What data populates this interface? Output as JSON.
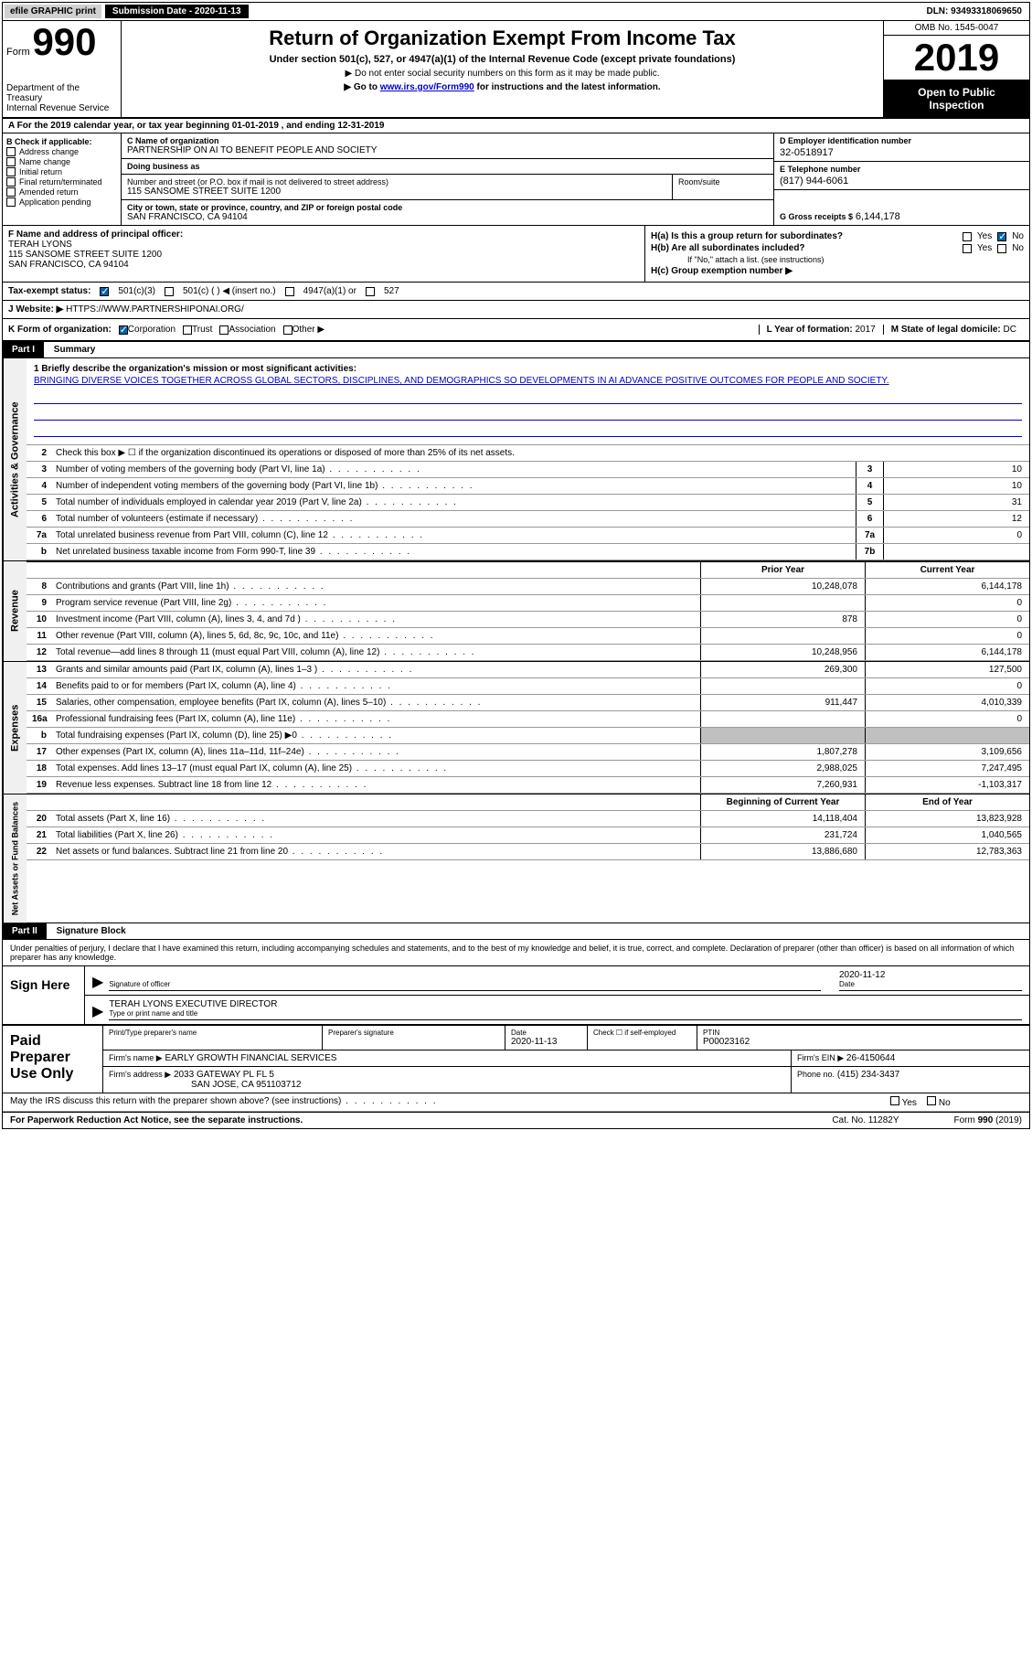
{
  "top": {
    "efile": "efile GRAPHIC print",
    "sub_date_lbl": "Submission Date - 2020-11-13",
    "dln": "DLN: 93493318069650"
  },
  "header": {
    "form_word": "Form",
    "form_num": "990",
    "dept": "Department of the Treasury\nInternal Revenue Service",
    "title": "Return of Organization Exempt From Income Tax",
    "subtitle": "Under section 501(c), 527, or 4947(a)(1) of the Internal Revenue Code (except private foundations)",
    "instr1": "▶ Do not enter social security numbers on this form as it may be made public.",
    "instr2_pre": "▶ Go to ",
    "instr2_link": "www.irs.gov/Form990",
    "instr2_post": " for instructions and the latest information.",
    "omb": "OMB No. 1545-0047",
    "year": "2019",
    "open_pub": "Open to Public Inspection"
  },
  "row_a": "A   For the 2019 calendar year, or tax year beginning 01-01-2019    , and ending 12-31-2019",
  "col_b": {
    "hdr": "B Check if applicable:",
    "items": [
      "Address change",
      "Name change",
      "Initial return",
      "Final return/terminated",
      "Amended return",
      "Application pending"
    ]
  },
  "col_c": {
    "name_lbl": "C Name of organization",
    "name": "PARTNERSHIP ON AI TO BENEFIT PEOPLE AND SOCIETY",
    "dba_lbl": "Doing business as",
    "dba": "",
    "addr_lbl": "Number and street (or P.O. box if mail is not delivered to street address)",
    "suite_lbl": "Room/suite",
    "addr": "115 SANSOME STREET SUITE 1200",
    "city_lbl": "City or town, state or province, country, and ZIP or foreign postal code",
    "city": "SAN FRANCISCO, CA  94104"
  },
  "col_d": {
    "ein_lbl": "D Employer identification number",
    "ein": "32-0518917",
    "tel_lbl": "E Telephone number",
    "tel": "(817) 944-6061",
    "gross_lbl": "G Gross receipts $",
    "gross": "6,144,178"
  },
  "col_f": {
    "lbl": "F  Name and address of principal officer:",
    "name": "TERAH LYONS",
    "addr1": "115 SANSOME STREET SUITE 1200",
    "addr2": "SAN FRANCISCO, CA  94104"
  },
  "col_h": {
    "ha": "H(a)  Is this a group return for subordinates?",
    "hb": "H(b)  Are all subordinates included?",
    "hb_note": "If \"No,\" attach a list. (see instructions)",
    "hc": "H(c)  Group exemption number ▶",
    "yes": "Yes",
    "no": "No"
  },
  "row_i": {
    "lbl": "Tax-exempt status:",
    "opts": [
      "501(c)(3)",
      "501(c) (  ) ◀ (insert no.)",
      "4947(a)(1) or",
      "527"
    ]
  },
  "row_j": {
    "lbl": "J   Website: ▶",
    "val": "HTTPS://WWW.PARTNERSHIPONAI.ORG/"
  },
  "row_k": {
    "lbl": "K Form of organization:",
    "opts": [
      "Corporation",
      "Trust",
      "Association",
      "Other ▶"
    ],
    "l_lbl": "L Year of formation:",
    "l_val": "2017",
    "m_lbl": "M State of legal domicile:",
    "m_val": "DC"
  },
  "part1": {
    "hdr": "Part I",
    "title": "Summary",
    "q1_lbl": "1  Briefly describe the organization's mission or most significant activities:",
    "q1_text": "BRINGING DIVERSE VOICES TOGETHER ACROSS GLOBAL SECTORS, DISCIPLINES, AND DEMOGRAPHICS SO DEVELOPMENTS IN AI ADVANCE POSITIVE OUTCOMES FOR PEOPLE AND SOCIETY.",
    "q2": "Check this box ▶ ☐  if the organization discontinued its operations or disposed of more than 25% of its net assets.",
    "side_gov": "Activities & Governance",
    "side_rev": "Revenue",
    "side_exp": "Expenses",
    "side_net": "Net Assets or Fund Balances",
    "col_prior": "Prior Year",
    "col_curr": "Current Year",
    "col_boy": "Beginning of Current Year",
    "col_eoy": "End of Year",
    "lines_gov": [
      {
        "n": "3",
        "t": "Number of voting members of the governing body (Part VI, line 1a)",
        "box": "3",
        "v": "10"
      },
      {
        "n": "4",
        "t": "Number of independent voting members of the governing body (Part VI, line 1b)",
        "box": "4",
        "v": "10"
      },
      {
        "n": "5",
        "t": "Total number of individuals employed in calendar year 2019 (Part V, line 2a)",
        "box": "5",
        "v": "31"
      },
      {
        "n": "6",
        "t": "Total number of volunteers (estimate if necessary)",
        "box": "6",
        "v": "12"
      },
      {
        "n": "7a",
        "t": "Total unrelated business revenue from Part VIII, column (C), line 12",
        "box": "7a",
        "v": "0"
      },
      {
        "n": "b",
        "t": "Net unrelated business taxable income from Form 990-T, line 39",
        "box": "7b",
        "v": ""
      }
    ],
    "lines_rev": [
      {
        "n": "8",
        "t": "Contributions and grants (Part VIII, line 1h)",
        "p": "10,248,078",
        "c": "6,144,178"
      },
      {
        "n": "9",
        "t": "Program service revenue (Part VIII, line 2g)",
        "p": "",
        "c": "0"
      },
      {
        "n": "10",
        "t": "Investment income (Part VIII, column (A), lines 3, 4, and 7d )",
        "p": "878",
        "c": "0"
      },
      {
        "n": "11",
        "t": "Other revenue (Part VIII, column (A), lines 5, 6d, 8c, 9c, 10c, and 11e)",
        "p": "",
        "c": "0"
      },
      {
        "n": "12",
        "t": "Total revenue—add lines 8 through 11 (must equal Part VIII, column (A), line 12)",
        "p": "10,248,956",
        "c": "6,144,178"
      }
    ],
    "lines_exp": [
      {
        "n": "13",
        "t": "Grants and similar amounts paid (Part IX, column (A), lines 1–3 )",
        "p": "269,300",
        "c": "127,500"
      },
      {
        "n": "14",
        "t": "Benefits paid to or for members (Part IX, column (A), line 4)",
        "p": "",
        "c": "0"
      },
      {
        "n": "15",
        "t": "Salaries, other compensation, employee benefits (Part IX, column (A), lines 5–10)",
        "p": "911,447",
        "c": "4,010,339"
      },
      {
        "n": "16a",
        "t": "Professional fundraising fees (Part IX, column (A), line 11e)",
        "p": "",
        "c": "0"
      },
      {
        "n": "b",
        "t": "Total fundraising expenses (Part IX, column (D), line 25) ▶0",
        "p": "grey",
        "c": "grey"
      },
      {
        "n": "17",
        "t": "Other expenses (Part IX, column (A), lines 11a–11d, 11f–24e)",
        "p": "1,807,278",
        "c": "3,109,656"
      },
      {
        "n": "18",
        "t": "Total expenses. Add lines 13–17 (must equal Part IX, column (A), line 25)",
        "p": "2,988,025",
        "c": "7,247,495"
      },
      {
        "n": "19",
        "t": "Revenue less expenses. Subtract line 18 from line 12",
        "p": "7,260,931",
        "c": "-1,103,317"
      }
    ],
    "lines_net": [
      {
        "n": "20",
        "t": "Total assets (Part X, line 16)",
        "p": "14,118,404",
        "c": "13,823,928"
      },
      {
        "n": "21",
        "t": "Total liabilities (Part X, line 26)",
        "p": "231,724",
        "c": "1,040,565"
      },
      {
        "n": "22",
        "t": "Net assets or fund balances. Subtract line 21 from line 20",
        "p": "13,886,680",
        "c": "12,783,363"
      }
    ]
  },
  "part2": {
    "hdr": "Part II",
    "title": "Signature Block",
    "decl": "Under penalties of perjury, I declare that I have examined this return, including accompanying schedules and statements, and to the best of my knowledge and belief, it is true, correct, and complete. Declaration of preparer (other than officer) is based on all information of which preparer has any knowledge.",
    "sign_here": "Sign Here",
    "sig_officer_lbl": "Signature of officer",
    "sig_date": "2020-11-12",
    "sig_date_lbl": "Date",
    "sig_name": "TERAH LYONS  EXECUTIVE DIRECTOR",
    "sig_name_lbl": "Type or print name and title",
    "paid": "Paid Preparer Use Only",
    "prep_name_lbl": "Print/Type preparer's name",
    "prep_sig_lbl": "Preparer's signature",
    "prep_date_lbl": "Date",
    "prep_date": "2020-11-13",
    "prep_self_lbl": "Check ☐ if self-employed",
    "ptin_lbl": "PTIN",
    "ptin": "P00023162",
    "firm_name_lbl": "Firm's name    ▶",
    "firm_name": "EARLY GROWTH FINANCIAL SERVICES",
    "firm_ein_lbl": "Firm's EIN ▶",
    "firm_ein": "26-4150644",
    "firm_addr_lbl": "Firm's address ▶",
    "firm_addr1": "2033 GATEWAY PL FL 5",
    "firm_addr2": "SAN JOSE, CA  951103712",
    "phone_lbl": "Phone no.",
    "phone": "(415) 234-3437",
    "discuss": "May the IRS discuss this return with the preparer shown above? (see instructions)"
  },
  "footer": {
    "left": "For Paperwork Reduction Act Notice, see the separate instructions.",
    "mid": "Cat. No. 11282Y",
    "right": "Form 990 (2019)"
  }
}
